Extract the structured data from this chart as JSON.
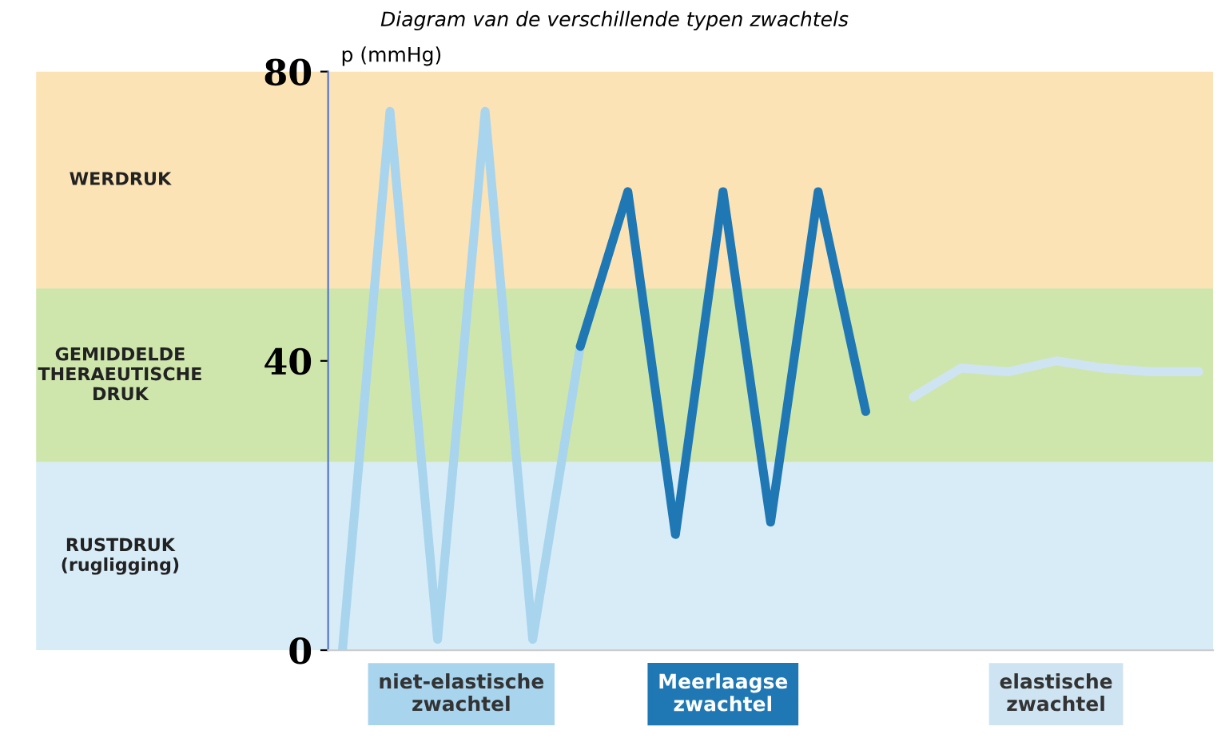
{
  "chart_data": {
    "type": "line",
    "title": "Diagram van de verschillende typen zwachtels",
    "ylabel": "p (mmHg)",
    "categories": [
      null,
      null,
      null,
      null,
      null,
      null,
      null,
      null,
      null,
      null,
      null,
      null,
      null,
      null,
      null,
      null,
      null,
      null,
      null
    ],
    "ylim": [
      0,
      80
    ],
    "yticks": [
      0,
      40,
      80
    ],
    "tick_labels": "y",
    "grid": false,
    "legend": false,
    "marker": "none",
    "line_style": "solid",
    "bands": [
      {
        "axis": "y",
        "from": 50,
        "to": 80,
        "label": "WERDRUK",
        "color": "#f9c25c"
      },
      {
        "axis": "y",
        "from": 26,
        "to": 50,
        "label": "GEMIDDELDE\nTHERAEUTISCHE\nDRUK",
        "color": "#93c847"
      },
      {
        "axis": "y",
        "from": 0,
        "to": 26,
        "label": "RUSTDRUK\n(rugligging)",
        "color": "#a9d4ef"
      }
    ],
    "series": [
      {
        "name": "niet-elastische\nzwachtel",
        "color": "#a8d4ee",
        "values": [
          0,
          74.5,
          1.5,
          74.5,
          1.5,
          42,
          null,
          null,
          null,
          null,
          null,
          null,
          null,
          null,
          null,
          null,
          null,
          null,
          null
        ]
      },
      {
        "name": "Meerlaagse\nzwachtel",
        "color": "#1f78b4",
        "values": [
          null,
          null,
          null,
          null,
          null,
          42,
          63.4,
          16,
          63.4,
          17.7,
          63.4,
          33,
          null,
          null,
          null,
          null,
          null,
          null,
          null
        ]
      },
      {
        "name": "elastische\nzwachtel",
        "color": "#cfe4f3",
        "values": [
          null,
          null,
          null,
          null,
          null,
          null,
          null,
          null,
          null,
          null,
          null,
          null,
          35,
          39,
          38.5,
          40,
          39,
          38.5,
          38.5
        ]
      }
    ]
  }
}
